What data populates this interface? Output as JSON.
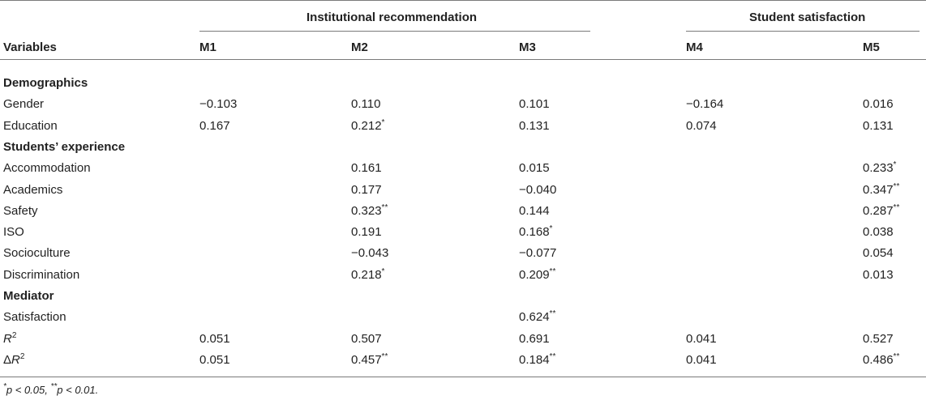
{
  "groups": {
    "institutional": "Institutional recommendation",
    "student": "Student satisfaction"
  },
  "header": {
    "variables": "Variables",
    "models": [
      "M1",
      "M2",
      "M3",
      "M4",
      "M5"
    ]
  },
  "rows": [
    {
      "type": "section",
      "label": "Demographics"
    },
    {
      "type": "data",
      "label": "Gender",
      "values": [
        "−0.103",
        "0.110",
        "0.101",
        "−0.164",
        "0.016"
      ]
    },
    {
      "type": "data",
      "label": "Education",
      "values": [
        "0.167",
        "0.212*",
        "0.131",
        "0.074",
        "0.131"
      ]
    },
    {
      "type": "section",
      "label": "Students’ experience"
    },
    {
      "type": "data",
      "label": "Accommodation",
      "values": [
        "",
        "0.161",
        "0.015",
        "",
        "0.233*"
      ]
    },
    {
      "type": "data",
      "label": "Academics",
      "values": [
        "",
        "0.177",
        "−0.040",
        "",
        "0.347**"
      ]
    },
    {
      "type": "data",
      "label": "Safety",
      "values": [
        "",
        "0.323**",
        "0.144",
        "",
        "0.287**"
      ]
    },
    {
      "type": "data",
      "label": "ISO",
      "values": [
        "",
        "0.191",
        "0.168*",
        "",
        "0.038"
      ]
    },
    {
      "type": "data",
      "label": "Socioculture",
      "values": [
        "",
        "−0.043",
        "−0.077",
        "",
        "0.054"
      ]
    },
    {
      "type": "data",
      "label": "Discrimination",
      "values": [
        "",
        "0.218*",
        "0.209**",
        "",
        "0.013"
      ]
    },
    {
      "type": "section",
      "label": "Mediator"
    },
    {
      "type": "data",
      "label": "Satisfaction",
      "values": [
        "",
        "",
        "0.624**",
        "",
        ""
      ]
    },
    {
      "type": "data",
      "label": "R2",
      "label_base": "R",
      "label_sup": "2",
      "values": [
        "0.051",
        "0.507",
        "0.691",
        "0.041",
        "0.527"
      ]
    },
    {
      "type": "data",
      "label": "ΔR2",
      "label_prefix": "Δ",
      "label_base": "R",
      "label_sup": "2",
      "values": [
        "0.051",
        "0.457**",
        "0.184**",
        "0.041",
        "0.486**"
      ]
    }
  ],
  "footnote": {
    "p1_star": "*",
    "p1_text": "p < 0.05, ",
    "p2_star": "**",
    "p2_text": "p < 0.01."
  }
}
